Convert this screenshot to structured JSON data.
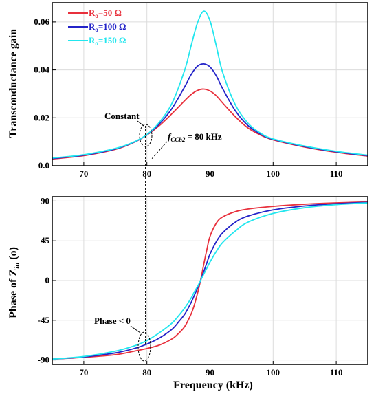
{
  "chart_data": [
    {
      "type": "line",
      "ylabel": "Transconductance gain",
      "xlabel": "",
      "xlim": [
        65,
        115
      ],
      "ylim": [
        0,
        0.068
      ],
      "xticks": [
        "70",
        "80",
        "90",
        "100",
        "110"
      ],
      "yticks": [
        "0.0",
        "0.02",
        "0.04",
        "0.06"
      ],
      "grid": true,
      "legend_position": "top-left",
      "legend": [
        {
          "base": "R",
          "sub": "o",
          "rest": "=50 Ω",
          "color": "#e8303c"
        },
        {
          "base": "R",
          "sub": "o",
          "rest": "=100 Ω",
          "color": "#2323c8"
        },
        {
          "base": "R",
          "sub": "o",
          "rest": "=150 Ω",
          "color": "#22e6ee"
        }
      ],
      "series": [
        {
          "name": "Ro=50 Ω",
          "color": "#e8303c",
          "x": [
            65,
            70,
            75,
            78,
            80,
            82,
            84,
            86,
            87,
            88,
            89,
            90,
            91,
            92,
            94,
            96,
            98,
            100,
            105,
            110,
            115
          ],
          "values": [
            0.0028,
            0.0042,
            0.0068,
            0.0098,
            0.0128,
            0.0168,
            0.0218,
            0.0272,
            0.0297,
            0.0314,
            0.032,
            0.0312,
            0.0292,
            0.0262,
            0.0205,
            0.0158,
            0.0128,
            0.0108,
            0.0078,
            0.0056,
            0.004
          ]
        },
        {
          "name": "Ro=100 Ω",
          "color": "#2323c8",
          "x": [
            65,
            70,
            75,
            78,
            80,
            82,
            84,
            86,
            87,
            88,
            89,
            90,
            91,
            92,
            94,
            96,
            98,
            100,
            105,
            110,
            115
          ],
          "values": [
            0.003,
            0.0044,
            0.007,
            0.0099,
            0.0129,
            0.0175,
            0.024,
            0.033,
            0.038,
            0.0415,
            0.0425,
            0.0412,
            0.0375,
            0.0322,
            0.023,
            0.0168,
            0.0132,
            0.011,
            0.008,
            0.0058,
            0.0042
          ]
        },
        {
          "name": "Ro=150 Ω",
          "color": "#22e6ee",
          "x": [
            65,
            70,
            75,
            78,
            80,
            82,
            84,
            86,
            87,
            88,
            89,
            90,
            91,
            92,
            94,
            96,
            98,
            100,
            105,
            110,
            115
          ],
          "values": [
            0.0032,
            0.0046,
            0.0072,
            0.01,
            0.013,
            0.0182,
            0.0262,
            0.04,
            0.05,
            0.0595,
            0.0645,
            0.0605,
            0.05,
            0.039,
            0.0255,
            0.0178,
            0.0136,
            0.0112,
            0.0082,
            0.006,
            0.0044
          ]
        }
      ],
      "annotations": {
        "constant": "Constant",
        "freq_base": "f",
        "freq_sub": "CCb2",
        "freq_rest": " = 80 kHz"
      }
    },
    {
      "type": "line",
      "xlabel": "Frequency (kHz)",
      "ylabel_base": "Phase of Z",
      "ylabel_sub": "in",
      "ylabel_rest": " (o)",
      "xlim": [
        65,
        115
      ],
      "ylim": [
        -95,
        95
      ],
      "xticks": [
        "70",
        "80",
        "90",
        "100",
        "110"
      ],
      "yticks": [
        "90",
        "45",
        "0",
        "-45",
        "-90"
      ],
      "grid": true,
      "series": [
        {
          "name": "Ro=50 Ω",
          "color": "#e8303c",
          "x": [
            65,
            70,
            75,
            78,
            80,
            82,
            84,
            85,
            86,
            87,
            87.5,
            88,
            88.5,
            89,
            89.5,
            90,
            91,
            92,
            94,
            96,
            100,
            105,
            110,
            115
          ],
          "values": [
            -89,
            -87,
            -84,
            -80,
            -77,
            -73,
            -66,
            -60,
            -52,
            -38,
            -28,
            -15,
            0,
            18,
            35,
            50,
            65,
            72,
            78,
            81,
            84,
            86.5,
            88,
            89
          ]
        },
        {
          "name": "Ro=100 Ω",
          "color": "#2323c8",
          "x": [
            65,
            70,
            75,
            78,
            80,
            82,
            84,
            85,
            86,
            87,
            87.5,
            88,
            88.5,
            89,
            89.5,
            90,
            91,
            92,
            94,
            96,
            100,
            105,
            110,
            115
          ],
          "values": [
            -89,
            -86.5,
            -82,
            -77,
            -72,
            -65,
            -55,
            -47,
            -38,
            -25,
            -17,
            -9,
            0,
            10,
            20,
            30,
            44,
            54,
            66,
            73,
            80,
            84.5,
            87,
            88.5
          ]
        },
        {
          "name": "Ro=150 Ω",
          "color": "#22e6ee",
          "x": [
            65,
            70,
            75,
            78,
            80,
            82,
            84,
            85,
            86,
            87,
            87.5,
            88,
            88.5,
            89,
            89.5,
            90,
            91,
            92,
            94,
            96,
            100,
            105,
            110,
            115
          ],
          "values": [
            -89,
            -86,
            -80,
            -74,
            -68,
            -59,
            -48,
            -40,
            -31,
            -20,
            -13,
            -7,
            0,
            7,
            14,
            21,
            33,
            43,
            56,
            66,
            76,
            82.5,
            86,
            88
          ]
        }
      ],
      "annotations": {
        "phase": "Phase < 0"
      }
    }
  ]
}
